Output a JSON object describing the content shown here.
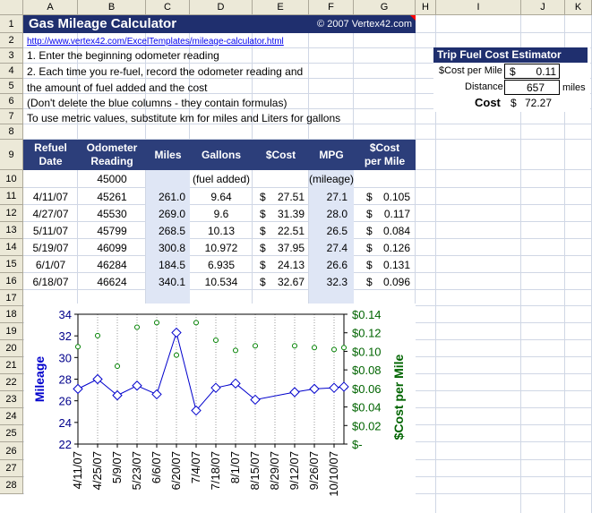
{
  "columns": [
    "A",
    "B",
    "C",
    "D",
    "E",
    "F",
    "G",
    "H",
    "I",
    "J",
    "K"
  ],
  "rows": [
    "1",
    "2",
    "3",
    "4",
    "5",
    "6",
    "7",
    "8",
    "9",
    "10",
    "11",
    "12",
    "13",
    "14",
    "15",
    "16",
    "17",
    "18",
    "19",
    "20",
    "21",
    "22",
    "23",
    "24",
    "25",
    "26",
    "27",
    "28"
  ],
  "title": "Gas Mileage Calculator",
  "copyright": "© 2007 Vertex42.com",
  "link": "http://www.vertex42.com/ExcelTemplates/mileage-calculator.html",
  "instructions": [
    "1. Enter the beginning odometer reading",
    "2. Each time you re-fuel, record the odometer reading and",
    "the amount of fuel added and the cost",
    "(Don't delete the blue columns - they contain formulas)",
    "To use metric values, substitute km for miles and Liters for gallons"
  ],
  "estimator": {
    "title": "Trip Fuel Cost Estimator",
    "cost_label": "$Cost per Mile",
    "cost_currency": "$",
    "cost_value": "0.11",
    "distance_label": "Distance",
    "distance_value": "657",
    "distance_unit": "miles",
    "total_label": "Cost",
    "total_currency": "$",
    "total_value": "72.27"
  },
  "table": {
    "headers": [
      [
        "Refuel",
        "Date"
      ],
      [
        "Odometer",
        "Reading"
      ],
      [
        "",
        "Miles"
      ],
      [
        "",
        "Gallons"
      ],
      [
        "",
        "$Cost"
      ],
      [
        "",
        "MPG"
      ],
      [
        "$Cost",
        "per Mile"
      ]
    ],
    "start_odometer": "45000",
    "note_gallons": "(fuel added)",
    "note_mpg": "(mileage)",
    "currency": "$",
    "rows": [
      {
        "date": "4/11/07",
        "odo": "45261",
        "miles": "261.0",
        "gallons": "9.64",
        "cost": "27.51",
        "mpg": "27.1",
        "cpm": "0.105"
      },
      {
        "date": "4/27/07",
        "odo": "45530",
        "miles": "269.0",
        "gallons": "9.6",
        "cost": "31.39",
        "mpg": "28.0",
        "cpm": "0.117"
      },
      {
        "date": "5/11/07",
        "odo": "45799",
        "miles": "268.5",
        "gallons": "10.13",
        "cost": "22.51",
        "mpg": "26.5",
        "cpm": "0.084"
      },
      {
        "date": "5/19/07",
        "odo": "46099",
        "miles": "300.8",
        "gallons": "10.972",
        "cost": "37.95",
        "mpg": "27.4",
        "cpm": "0.126"
      },
      {
        "date": "6/1/07",
        "odo": "46284",
        "miles": "184.5",
        "gallons": "6.935",
        "cost": "24.13",
        "mpg": "26.6",
        "cpm": "0.131"
      },
      {
        "date": "6/18/07",
        "odo": "46624",
        "miles": "340.1",
        "gallons": "10.534",
        "cost": "32.67",
        "mpg": "32.3",
        "cpm": "0.096"
      }
    ]
  },
  "chart_data": {
    "type": "line",
    "ylabel": "Mileage",
    "y2label": "$Cost per Mile",
    "ylim": [
      22,
      34
    ],
    "yticks": [
      "22",
      "24",
      "26",
      "28",
      "30",
      "32",
      "34"
    ],
    "y2lim": [
      0,
      0.14
    ],
    "y2ticks": [
      "$-",
      "$0.02",
      "$0.04",
      "$0.06",
      "$0.08",
      "$0.10",
      "$0.12",
      "$0.14"
    ],
    "categories": [
      "4/11/07",
      "4/25/07",
      "5/9/07",
      "5/23/07",
      "6/6/07",
      "6/20/07",
      "7/4/07",
      "7/18/07",
      "8/1/07",
      "8/15/07",
      "8/29/07",
      "9/12/07",
      "9/26/07",
      "10/10/07"
    ],
    "series": [
      {
        "style": "diamond-line",
        "color": "#0000cc",
        "points": [
          [
            0,
            27.1
          ],
          [
            1,
            28.0
          ],
          [
            2,
            26.5
          ],
          [
            3,
            27.4
          ],
          [
            4,
            26.6
          ],
          [
            5,
            32.3
          ],
          [
            6,
            25.1
          ],
          [
            7,
            27.2
          ],
          [
            8,
            27.6
          ],
          [
            9,
            26.1
          ],
          [
            11,
            26.8
          ],
          [
            12,
            27.1
          ],
          [
            13,
            27.2
          ],
          [
            13.5,
            27.3
          ]
        ]
      },
      {
        "style": "circle",
        "color": "#008000",
        "points": [
          [
            0,
            0.105
          ],
          [
            1,
            0.117
          ],
          [
            2,
            0.084
          ],
          [
            3,
            0.126
          ],
          [
            4,
            0.131
          ],
          [
            5,
            0.096
          ],
          [
            6,
            0.131
          ],
          [
            7,
            0.112
          ],
          [
            8,
            0.101
          ],
          [
            9,
            0.106
          ],
          [
            11,
            0.106
          ],
          [
            12,
            0.104
          ],
          [
            13,
            0.102
          ],
          [
            13.5,
            0.104
          ]
        ]
      }
    ]
  }
}
